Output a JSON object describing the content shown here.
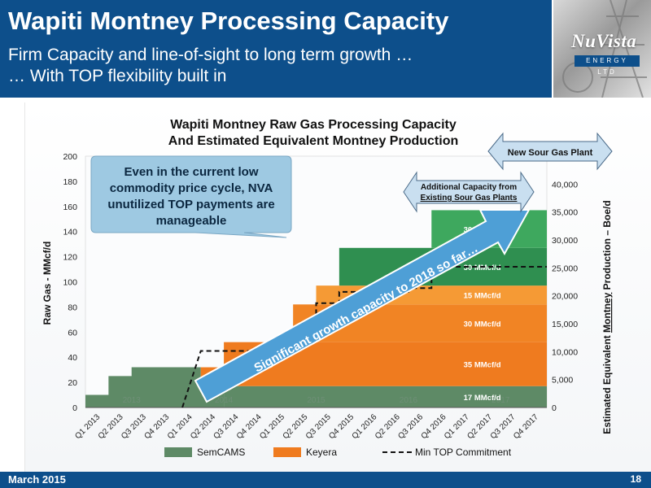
{
  "header": {
    "title": "Wapiti Montney Processing Capacity",
    "subtitle_line1": "Firm Capacity and line-of-sight to long term growth …",
    "subtitle_line2": "… With TOP flexibility built in"
  },
  "logo": {
    "name": "NuVista",
    "tagline": "ENERGY LTD"
  },
  "footer": {
    "date": "March 2015",
    "page": "18"
  },
  "colors": {
    "header_bg": "#0d4f8b",
    "semcams": "#5e8a66",
    "keyera": "#ef7b1f",
    "keyera_light": "#f59a35",
    "plant_dark_green": "#2f8f50",
    "plant_mid_green": "#3ea85e",
    "callout_fill": "#9ec9e2",
    "arrow_fill": "#4e9fd6"
  },
  "chart_data": {
    "type": "area",
    "title_line1": "Wapiti Montney Raw Gas Processing Capacity",
    "title_line2": "And Estimated Equivalent Montney Production",
    "ylabel": "Raw Gas - MMcf/d",
    "y2label_part1": "Estimated Equivalent ",
    "y2label_underlined": "Montney",
    "y2label_part2": " Production – Boe/d",
    "ylim": [
      0,
      200
    ],
    "y_ticks": [
      0,
      20,
      40,
      60,
      80,
      100,
      120,
      140,
      160,
      180,
      200
    ],
    "y2_ticks": [
      {
        "value": 0,
        "label": "0"
      },
      {
        "value": 5000,
        "label": "5,000"
      },
      {
        "value": 10000,
        "label": "10,000"
      },
      {
        "value": 15000,
        "label": "15,000"
      },
      {
        "value": 20000,
        "label": "20,000"
      },
      {
        "value": 25000,
        "label": "25,000"
      },
      {
        "value": 30000,
        "label": "30,000"
      },
      {
        "value": 35000,
        "label": "35,000"
      },
      {
        "value": 40000,
        "label": "40,000"
      }
    ],
    "y2lim": [
      0,
      45000
    ],
    "categories": [
      "Q1 2013",
      "Q2 2013",
      "Q3 2013",
      "Q4 2013",
      "Q1 2014",
      "Q2 2014",
      "Q3 2014",
      "Q4 2014",
      "Q1 2015",
      "Q2 2015",
      "Q3 2015",
      "Q4 2015",
      "Q1 2016",
      "Q2 2016",
      "Q3 2016",
      "Q4 2016",
      "Q1 2017",
      "Q2 2017",
      "Q3 2017",
      "Q4 2017"
    ],
    "year_labels": [
      "2013",
      "2014",
      "2015",
      "2016",
      "2017"
    ],
    "grid": false,
    "legend_position": "bottom",
    "series": [
      {
        "name": "SemCAMS",
        "color": "#5e8a66",
        "values": [
          10,
          25,
          32,
          32,
          32,
          17,
          17,
          17,
          17,
          17,
          17,
          17,
          17,
          17,
          17,
          17,
          17,
          17,
          17,
          17
        ]
      },
      {
        "name": "Keyera",
        "color": "#ef7b1f",
        "values": [
          0,
          0,
          0,
          0,
          0,
          15,
          50,
          50,
          65,
          65,
          80,
          80,
          80,
          80,
          80,
          80,
          80,
          80,
          80,
          80
        ]
      },
      {
        "name": "Min TOP Commitment",
        "color": "#111111",
        "style": "dashed",
        "values": [
          0,
          0,
          0,
          0,
          0,
          45,
          45,
          45,
          45,
          57,
          83,
          92,
          92,
          92,
          95,
          112,
          112,
          112,
          112,
          112
        ]
      }
    ],
    "capacity_blocks": [
      {
        "label": "17 MMcf/d",
        "start": 6,
        "bottom": 0,
        "top": 17,
        "color": "#5e8a66"
      },
      {
        "label": "35 MMcf/d",
        "start": 6,
        "bottom": 17,
        "top": 52,
        "color": "#ef7b1f"
      },
      {
        "label": "30 MMcf/d",
        "start": 9,
        "bottom": 52,
        "top": 82,
        "color": "#f18424"
      },
      {
        "label": "15 MMcf/d",
        "start": 10,
        "bottom": 82,
        "top": 97,
        "color": "#f59a35"
      },
      {
        "label": "30 MMcf/d",
        "start": 11,
        "bottom": 97,
        "top": 127,
        "color": "#2f8f50"
      },
      {
        "label": "30 MMcf/d",
        "start": 15,
        "bottom": 127,
        "top": 157,
        "color": "#3ea85e"
      }
    ],
    "total_capacity_profile": [
      10,
      25,
      32,
      32,
      32,
      32,
      67,
      67,
      82,
      82,
      97,
      127,
      127,
      127,
      127,
      157,
      157,
      157,
      157,
      157
    ],
    "annotations": {
      "callout": "Even in the current low commodity price cycle, NVA unutilized TOP payments are manageable",
      "growth_arrow": "Significant growth capacity to 2018 so far…",
      "new_sour_gas": "New Sour Gas Plant",
      "additional_capacity_line1": "Additional Capacity from",
      "additional_capacity_line2": "Existing Sour Gas Plants"
    }
  }
}
